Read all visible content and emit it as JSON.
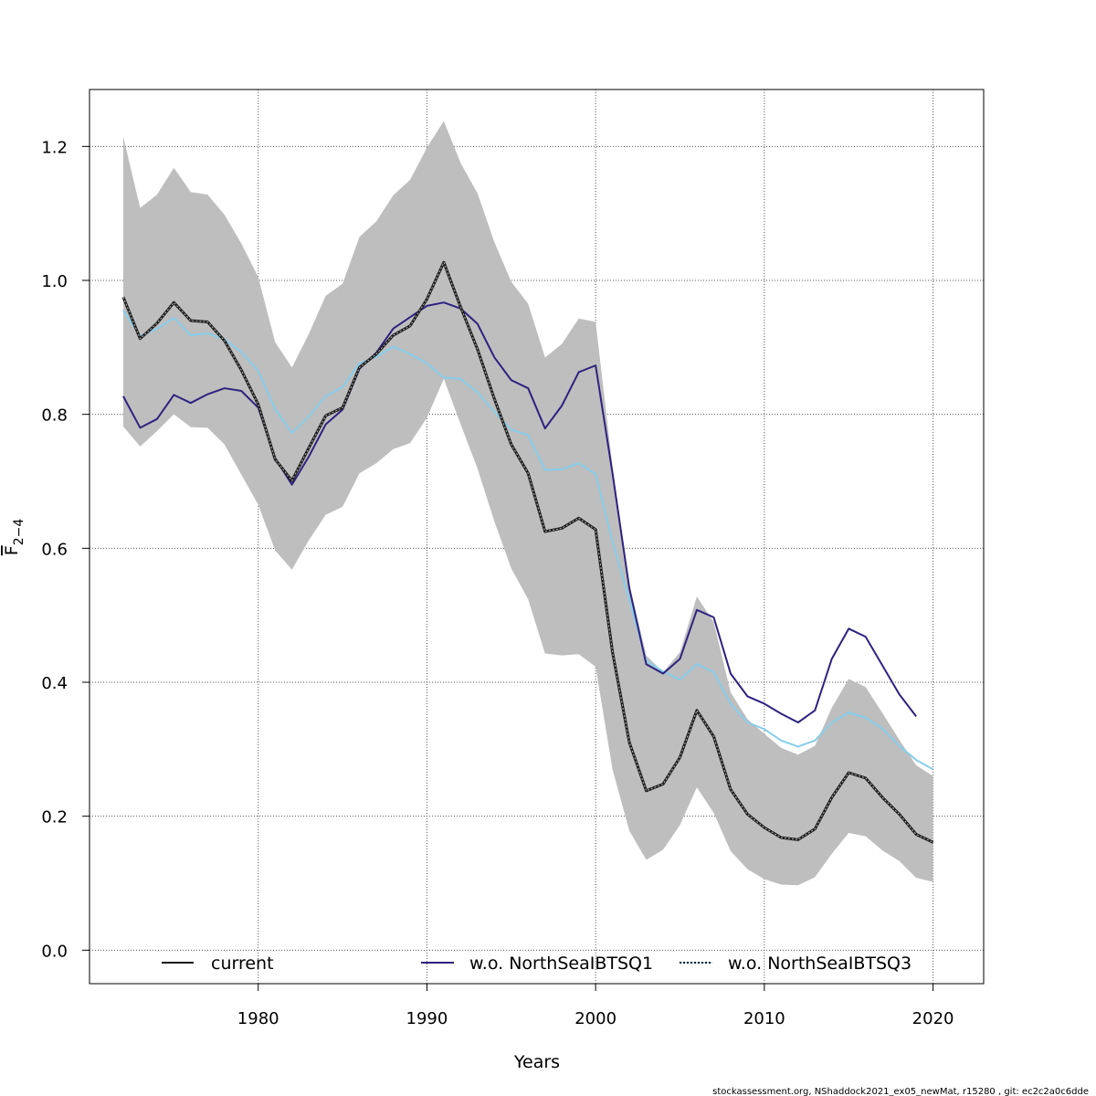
{
  "chart_data": {
    "type": "line",
    "xlabel": "Years",
    "ylabel": "F",
    "ylabel_sub": "2−4",
    "xlim": [
      1970,
      2023
    ],
    "ylim": [
      -0.05,
      1.285
    ],
    "xticks": [
      1980,
      1990,
      2000,
      2010,
      2020
    ],
    "yticks": [
      0.0,
      0.2,
      0.4,
      0.6,
      0.8,
      1.0,
      1.2
    ],
    "ytick_labels": [
      "0.0",
      "0.2",
      "0.4",
      "0.6",
      "0.8",
      "1.0",
      "1.2"
    ],
    "grid": true,
    "legend_position": "bottom",
    "colors": {
      "band": "#bebebe",
      "current": "#1a1a1a",
      "nsq1": "#2d2280",
      "nsq3": "#87ceeb",
      "grid": "#555555"
    },
    "x": [
      1972,
      1973,
      1974,
      1975,
      1976,
      1977,
      1978,
      1979,
      1980,
      1981,
      1982,
      1983,
      1984,
      1985,
      1986,
      1987,
      1988,
      1989,
      1990,
      1991,
      1992,
      1993,
      1994,
      1995,
      1996,
      1997,
      1998,
      1999,
      2000,
      2001,
      2002,
      2003,
      2004,
      2005,
      2006,
      2007,
      2008,
      2009,
      2010,
      2011,
      2012,
      2013,
      2014,
      2015,
      2016,
      2017,
      2018,
      2019,
      2020
    ],
    "band": {
      "upper": [
        1.215,
        1.108,
        1.128,
        1.168,
        1.132,
        1.128,
        1.098,
        1.055,
        1.005,
        0.908,
        0.87,
        0.92,
        0.977,
        0.995,
        1.065,
        1.088,
        1.127,
        1.15,
        1.198,
        1.238,
        1.175,
        1.13,
        1.057,
        0.998,
        0.965,
        0.885,
        0.905,
        0.943,
        0.938,
        0.722,
        0.547,
        0.44,
        0.415,
        0.445,
        0.528,
        0.49,
        0.385,
        0.345,
        0.323,
        0.302,
        0.292,
        0.305,
        0.362,
        0.405,
        0.393,
        0.354,
        0.314,
        0.276,
        0.26
      ],
      "lower": [
        0.782,
        0.752,
        0.775,
        0.8,
        0.781,
        0.78,
        0.755,
        0.71,
        0.665,
        0.597,
        0.568,
        0.612,
        0.65,
        0.662,
        0.712,
        0.727,
        0.748,
        0.757,
        0.795,
        0.853,
        0.785,
        0.719,
        0.64,
        0.57,
        0.524,
        0.443,
        0.44,
        0.442,
        0.423,
        0.27,
        0.178,
        0.135,
        0.15,
        0.187,
        0.243,
        0.205,
        0.148,
        0.121,
        0.106,
        0.098,
        0.097,
        0.109,
        0.144,
        0.175,
        0.17,
        0.149,
        0.133,
        0.108,
        0.102
      ]
    },
    "series": [
      {
        "name": "current",
        "values": [
          0.975,
          0.913,
          0.936,
          0.967,
          0.94,
          0.938,
          0.91,
          0.866,
          0.815,
          0.733,
          0.701,
          0.75,
          0.798,
          0.81,
          0.87,
          0.89,
          0.918,
          0.932,
          0.972,
          1.027,
          0.96,
          0.897,
          0.823,
          0.755,
          0.712,
          0.625,
          0.63,
          0.645,
          0.628,
          0.445,
          0.31,
          0.238,
          0.248,
          0.288,
          0.358,
          0.319,
          0.24,
          0.203,
          0.183,
          0.168,
          0.165,
          0.181,
          0.228,
          0.265,
          0.257,
          0.228,
          0.203,
          0.173,
          0.161
        ]
      },
      {
        "name": "w.o. NorthSeaIBTSQ1",
        "values": [
          0.827,
          0.78,
          0.793,
          0.829,
          0.817,
          0.83,
          0.839,
          0.835,
          0.81,
          0.735,
          0.695,
          0.737,
          0.785,
          0.807,
          0.868,
          0.892,
          0.928,
          0.945,
          0.962,
          0.967,
          0.958,
          0.935,
          0.885,
          0.851,
          0.839,
          0.779,
          0.813,
          0.863,
          0.873,
          0.712,
          0.54,
          0.427,
          0.413,
          0.435,
          0.508,
          0.497,
          0.413,
          0.379,
          0.368,
          0.353,
          0.34,
          0.358,
          0.435,
          0.48,
          0.468,
          0.425,
          0.382,
          0.349,
          null
        ]
      },
      {
        "name": "w.o. NorthSeaIBTSQ3",
        "values": [
          0.955,
          0.917,
          0.928,
          0.944,
          0.918,
          0.921,
          0.912,
          0.893,
          0.865,
          0.808,
          0.772,
          0.797,
          0.827,
          0.841,
          0.876,
          0.886,
          0.901,
          0.89,
          0.876,
          0.855,
          0.853,
          0.833,
          0.804,
          0.777,
          0.769,
          0.717,
          0.718,
          0.727,
          0.711,
          0.61,
          0.523,
          0.432,
          0.416,
          0.404,
          0.427,
          0.415,
          0.368,
          0.34,
          0.33,
          0.313,
          0.304,
          0.313,
          0.34,
          0.355,
          0.347,
          0.331,
          0.305,
          0.284,
          0.27
        ]
      }
    ]
  },
  "legend": {
    "current": "current",
    "nsq1": "w.o. NorthSeaIBTSQ1",
    "nsq3": "w.o. NorthSeaIBTSQ3"
  },
  "footer": "stockassessment.org, NShaddock2021_ex05_newMat, r15280 , git: ec2c2a0c6dde"
}
